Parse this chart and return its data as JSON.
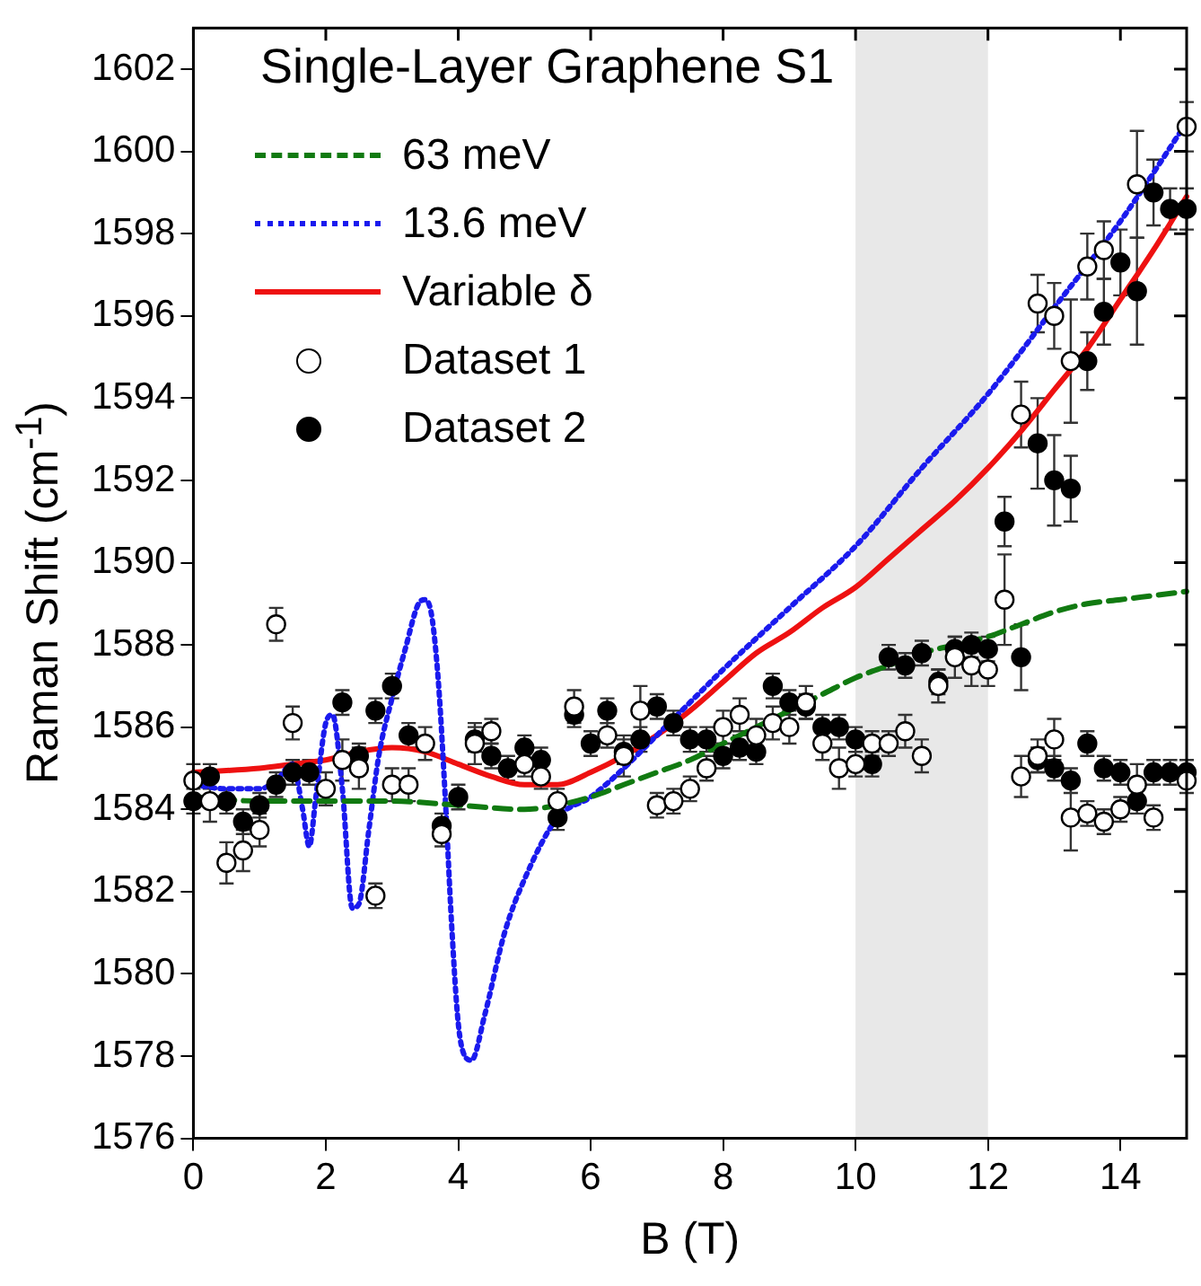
{
  "chart_data": {
    "type": "scatter",
    "title": "Single-Layer Graphene S1",
    "xlabel": "B (T)",
    "ylabel": "Raman Shift (cm$^{-1}$)",
    "xlim": [
      0,
      15
    ],
    "xticks": [
      0,
      2,
      4,
      6,
      8,
      10,
      12,
      14
    ],
    "ylim": [
      1576,
      1603
    ],
    "yticks": [
      1576,
      1578,
      1580,
      1582,
      1584,
      1586,
      1588,
      1590,
      1592,
      1594,
      1596,
      1598,
      1600,
      1602
    ],
    "grid": false,
    "legend": "top left",
    "bands": [
      {
        "axis": "x",
        "from": 10,
        "to": 12,
        "color": "#e8e8e8"
      }
    ],
    "series": [
      {
        "name": "63 meV",
        "type": "line",
        "color": "#117a11",
        "line_style": "dashed",
        "x": [
          0,
          1,
          2,
          3,
          4,
          5,
          5.5,
          6,
          6.5,
          7,
          7.5,
          8,
          8.5,
          9,
          9.5,
          10,
          10.5,
          11,
          11.5,
          12,
          12.5,
          13,
          13.5,
          14,
          15
        ],
        "values": [
          1584.3,
          1584.2,
          1584.2,
          1584.2,
          1584.1,
          1584.0,
          1584.1,
          1584.3,
          1584.6,
          1584.9,
          1585.2,
          1585.6,
          1586.0,
          1586.4,
          1586.8,
          1587.2,
          1587.5,
          1587.8,
          1588.0,
          1588.2,
          1588.5,
          1588.8,
          1589.0,
          1589.1,
          1589.3
        ]
      },
      {
        "name": "13.6 meV",
        "type": "line",
        "color": "#1a1aee",
        "line_style": "dotted",
        "x": [
          0,
          0.5,
          1,
          1.25,
          1.5,
          1.65,
          1.75,
          1.85,
          2.0,
          2.1,
          2.25,
          2.4,
          2.5,
          2.65,
          2.8,
          3.0,
          3.2,
          3.4,
          3.5,
          3.6,
          3.7,
          3.8,
          3.9,
          4.0,
          4.1,
          4.2,
          4.4,
          4.7,
          5.0,
          5.5,
          6,
          6.5,
          7,
          7.5,
          8,
          9,
          10,
          11,
          12,
          13,
          14,
          15
        ],
        "values": [
          1584.6,
          1584.5,
          1584.5,
          1584.7,
          1585.1,
          1584.0,
          1583.1,
          1584.3,
          1586.1,
          1586.3,
          1584.5,
          1581.6,
          1581.7,
          1583.5,
          1585.3,
          1586.7,
          1587.9,
          1589.0,
          1589.1,
          1588.7,
          1587.1,
          1584.4,
          1581.2,
          1578.8,
          1578.0,
          1577.9,
          1579.0,
          1581.0,
          1582.3,
          1583.8,
          1584.3,
          1585.0,
          1585.8,
          1586.6,
          1587.4,
          1588.9,
          1590.4,
          1592.3,
          1594.1,
          1596.2,
          1598.3,
          1600.7
        ]
      },
      {
        "name": "Variable δ",
        "type": "line",
        "color": "#ee1111",
        "line_style": "solid",
        "x": [
          0,
          1,
          1.5,
          2,
          2.5,
          3,
          3.5,
          4,
          4.5,
          5,
          5.5,
          6,
          6.5,
          7,
          7.5,
          8,
          8.5,
          9,
          9.5,
          10,
          10.5,
          11,
          11.5,
          12,
          12.5,
          13,
          13.5,
          14,
          14.5,
          15
        ],
        "values": [
          1584.9,
          1585.0,
          1585.1,
          1585.2,
          1585.4,
          1585.5,
          1585.4,
          1585.1,
          1584.8,
          1584.6,
          1584.6,
          1584.9,
          1585.3,
          1585.8,
          1586.4,
          1587.1,
          1587.8,
          1588.3,
          1588.9,
          1589.4,
          1590.1,
          1590.8,
          1591.5,
          1592.3,
          1593.2,
          1594.2,
          1595.2,
          1596.4,
          1597.6,
          1598.9
        ]
      },
      {
        "name": "Dataset 1",
        "color": "#ffffff",
        "marker": "circle",
        "x": [
          0,
          0.25,
          0.5,
          0.75,
          1,
          1.25,
          1.5,
          2,
          2.25,
          2.5,
          2.75,
          3,
          3.25,
          3.5,
          3.75,
          4.25,
          4.5,
          5,
          5.25,
          5.5,
          5.75,
          6.25,
          6.5,
          6.75,
          7,
          7.25,
          7.5,
          7.75,
          8,
          8.25,
          8.5,
          8.75,
          9,
          9.25,
          9.5,
          9.75,
          10,
          10.25,
          10.5,
          10.75,
          11,
          11.25,
          11.5,
          11.75,
          12,
          12.25,
          12.5,
          12.5,
          12.75,
          12.75,
          13,
          13,
          13.25,
          13.25,
          13.5,
          13.5,
          13.75,
          13.75,
          14,
          14.25,
          14.25,
          14.5,
          15,
          15
        ],
        "values": [
          1584.7,
          1584.2,
          1582.7,
          1583.0,
          1583.5,
          1588.5,
          1586.1,
          1584.5,
          1585.2,
          1585.0,
          1581.9,
          1584.6,
          1584.6,
          1585.6,
          1583.4,
          1585.6,
          1585.9,
          1585.1,
          1584.8,
          1584.2,
          1586.5,
          1585.8,
          1585.3,
          1586.4,
          1584.1,
          1584.2,
          1584.5,
          1585.0,
          1586.0,
          1586.3,
          1585.8,
          1586.1,
          1586.0,
          1586.6,
          1585.6,
          1585.0,
          1585.1,
          1585.6,
          1585.6,
          1585.9,
          1585.3,
          1587.0,
          1587.7,
          1587.5,
          1587.4,
          1589.1,
          1584.8,
          1593.6,
          1596.3,
          1585.3,
          1596.0,
          1585.7,
          1594.9,
          1583.8,
          1597.2,
          1583.9,
          1597.6,
          1583.7,
          1584.0,
          1599.2,
          1584.6,
          1583.8,
          1600.6,
          1584.7
        ],
        "errors": [
          0.4,
          0.5,
          0.5,
          0.5,
          0.4,
          0.4,
          0.4,
          0.4,
          0.5,
          0.5,
          0.3,
          0.4,
          0.4,
          0.4,
          0.3,
          0.5,
          0.3,
          0.3,
          0.3,
          0.3,
          0.4,
          0.3,
          0.5,
          0.6,
          0.3,
          0.3,
          0.3,
          0.3,
          0.4,
          0.4,
          0.4,
          0.4,
          0.4,
          0.4,
          0.4,
          0.5,
          0.3,
          0.3,
          0.3,
          0.4,
          0.4,
          0.4,
          0.5,
          0.5,
          0.4,
          1.1,
          0.5,
          0.8,
          0.7,
          0.4,
          0.8,
          0.5,
          1.5,
          0.8,
          0.8,
          0.3,
          0.7,
          0.3,
          0.3,
          1.3,
          0.5,
          0.3,
          0.6,
          0.3
        ]
      },
      {
        "name": "Dataset 2",
        "color": "#000000",
        "marker": "circle",
        "x": [
          0,
          0.25,
          0.5,
          0.75,
          1,
          1.25,
          1.5,
          1.75,
          2.25,
          2.5,
          2.75,
          3,
          3.25,
          3.75,
          4,
          4.25,
          4.5,
          4.75,
          5,
          5.25,
          5.5,
          5.75,
          6,
          6.25,
          6.5,
          6.75,
          7,
          7.25,
          7.5,
          7.75,
          8,
          8.25,
          8.5,
          8.75,
          9,
          9.25,
          9.5,
          9.75,
          10,
          10.25,
          10.5,
          10.75,
          11,
          11.25,
          11.5,
          11.75,
          12,
          12.25,
          12.5,
          12.75,
          12.75,
          13,
          13,
          13.25,
          13.25,
          13.5,
          13.5,
          13.75,
          13.75,
          14,
          14,
          14.25,
          14.25,
          14.5,
          14.5,
          14.75,
          14.75,
          15,
          15
        ],
        "values": [
          1584.2,
          1584.8,
          1584.2,
          1583.7,
          1584.1,
          1584.6,
          1584.9,
          1584.9,
          1586.6,
          1585.3,
          1586.4,
          1587.0,
          1585.8,
          1583.6,
          1584.3,
          1585.7,
          1585.3,
          1585.0,
          1585.5,
          1585.2,
          1583.8,
          1586.3,
          1585.6,
          1586.4,
          1585.4,
          1585.7,
          1586.5,
          1586.1,
          1585.7,
          1585.7,
          1585.3,
          1585.5,
          1585.4,
          1587.0,
          1586.6,
          1586.5,
          1586.0,
          1586.0,
          1585.7,
          1585.1,
          1587.7,
          1587.5,
          1587.8,
          1587.1,
          1587.9,
          1588.0,
          1587.9,
          1591.0,
          1587.7,
          1592.9,
          1585.2,
          1592.0,
          1585.0,
          1591.8,
          1584.7,
          1594.9,
          1585.6,
          1596.1,
          1585.0,
          1597.3,
          1584.9,
          1596.6,
          1584.2,
          1599.0,
          1584.9,
          1598.6,
          1584.9,
          1598.6,
          1584.9
        ],
        "errors": [
          0.3,
          0.3,
          0.3,
          0.3,
          0.3,
          0.3,
          0.3,
          0.3,
          0.3,
          0.3,
          0.3,
          0.3,
          0.3,
          0.3,
          0.3,
          0.3,
          0.3,
          0.3,
          0.3,
          0.3,
          0.3,
          0.3,
          0.3,
          0.3,
          0.3,
          0.3,
          0.3,
          0.3,
          0.3,
          0.3,
          0.3,
          0.3,
          0.3,
          0.3,
          0.3,
          0.3,
          0.3,
          0.3,
          0.3,
          0.3,
          0.3,
          0.3,
          0.3,
          0.3,
          0.3,
          0.3,
          0.3,
          0.6,
          0.8,
          1.1,
          0.3,
          1.1,
          0.3,
          0.8,
          0.3,
          0.7,
          0.3,
          0.8,
          0.3,
          0.8,
          0.3,
          1.3,
          0.3,
          0.8,
          0.3,
          0.5,
          0.3,
          0.5,
          0.3
        ]
      }
    ]
  }
}
